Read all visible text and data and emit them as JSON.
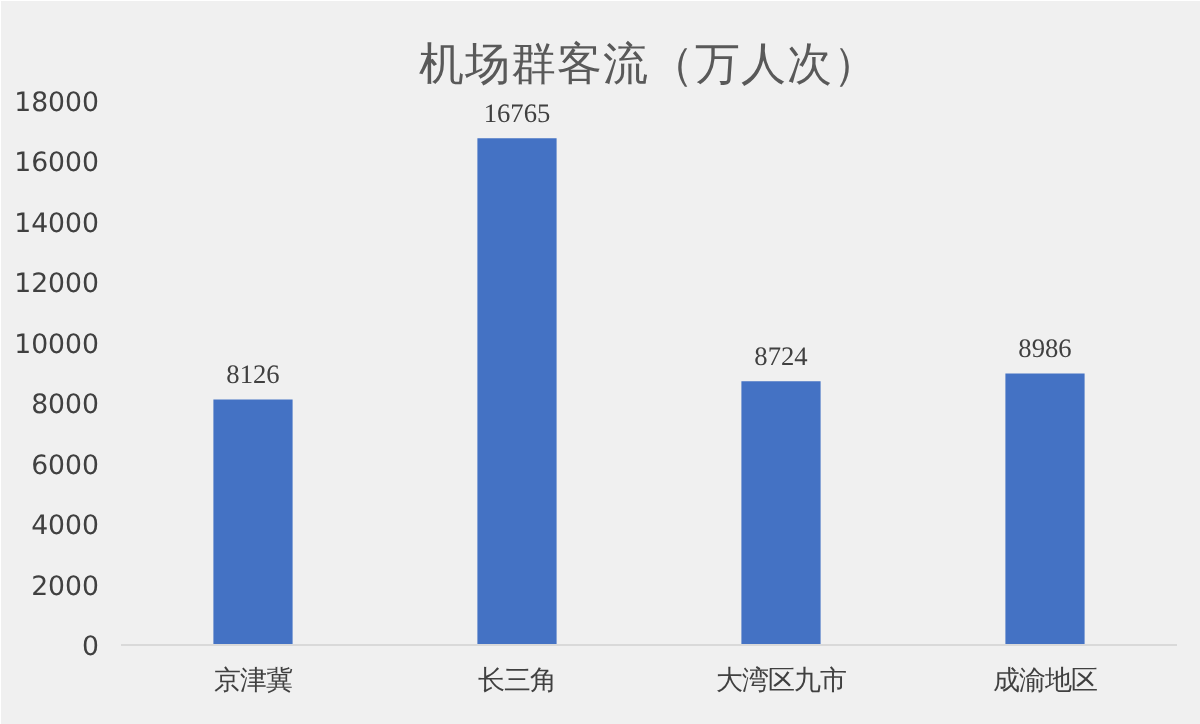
{
  "chart_data": {
    "type": "bar",
    "title": "机场群客流（万人次）",
    "categories": [
      "京津冀",
      "长三角",
      "大湾区九市",
      "成渝地区"
    ],
    "values": [
      8126,
      16765,
      8724,
      8986
    ],
    "color": "#4472c4",
    "ylim": [
      0,
      18000
    ],
    "yticks": [
      0,
      2000,
      4000,
      6000,
      8000,
      10000,
      12000,
      14000,
      16000,
      18000
    ],
    "data_labels": true,
    "grid": false
  }
}
